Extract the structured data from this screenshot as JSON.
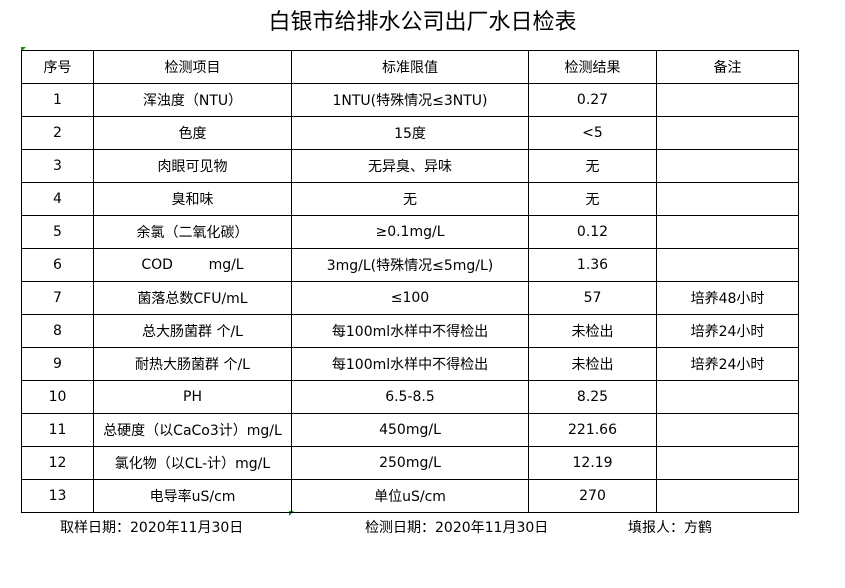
{
  "title": "白银市给排水公司出厂水日检表",
  "headers": [
    "序号",
    "检测项目",
    "标准限值",
    "检测结果",
    "备注"
  ],
  "rows": [
    [
      "1",
      "浑浊度（NTU）",
      "1NTU(特殊情况≤3NTU)",
      "0.27",
      ""
    ],
    [
      "2",
      "色度",
      "15度",
      "<5",
      ""
    ],
    [
      "3",
      "肉眼可见物",
      "无异臭、异味",
      "无",
      ""
    ],
    [
      "4",
      "臭和味",
      "无",
      "无",
      ""
    ],
    [
      "5",
      "余氯（二氧化碳）",
      "≥0.1mg/L",
      "0.12",
      ""
    ],
    [
      "6",
      "COD        mg/L",
      "3mg/L(特殊情况≤5mg/L)",
      "1.36",
      ""
    ],
    [
      "7",
      "菌落总数CFU/mL",
      "≤100",
      "57",
      "培养48小时"
    ],
    [
      "8",
      "总大肠菌群 个/L",
      "每100ml水样中不得检出",
      "未检出",
      "培养24小时"
    ],
    [
      "9",
      "耐热大肠菌群 个/L",
      "每100ml水样中不得检出",
      "未检出",
      "培养24小时"
    ],
    [
      "10",
      "PH",
      "6.5-8.5",
      "8.25",
      ""
    ],
    [
      "11",
      "总硬度（以CaCo3计）mg/L",
      "450mg/L",
      "221.66",
      ""
    ],
    [
      "12",
      "氯化物（以CL-计）mg/L",
      "250mg/L",
      "12.19",
      ""
    ],
    [
      "13",
      "电导率uS/cm",
      "单位uS/cm",
      "270",
      ""
    ]
  ],
  "footer": {
    "sample_date": "取样日期：2020年11月30日",
    "test_date": "检测日期：2020年11月30日",
    "reporter": "填报人：方鹤"
  }
}
